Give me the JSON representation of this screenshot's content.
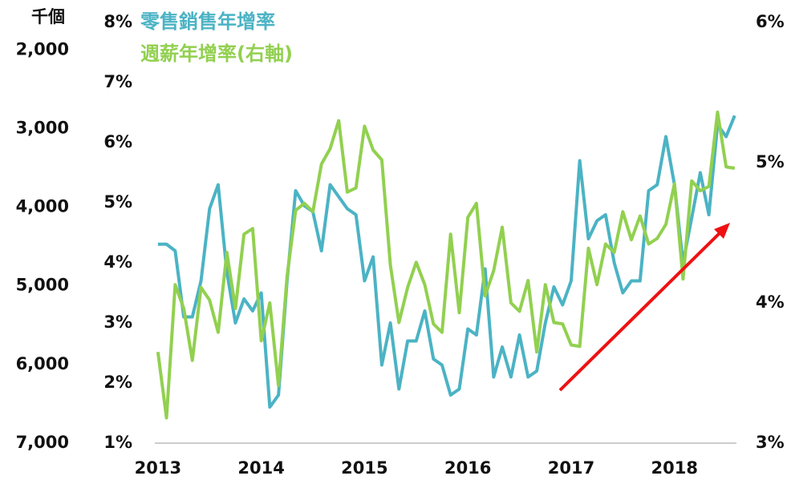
{
  "chart_data": {
    "type": "line",
    "y3_title": "千個",
    "x": [
      2013,
      2013.083,
      2013.167,
      2013.25,
      2013.333,
      2013.417,
      2013.5,
      2013.583,
      2013.667,
      2013.75,
      2013.833,
      2013.917,
      2014,
      2014.083,
      2014.167,
      2014.25,
      2014.333,
      2014.417,
      2014.5,
      2014.583,
      2014.667,
      2014.75,
      2014.833,
      2014.917,
      2015,
      2015.083,
      2015.167,
      2015.25,
      2015.333,
      2015.417,
      2015.5,
      2015.583,
      2015.667,
      2015.75,
      2015.833,
      2015.917,
      2016,
      2016.083,
      2016.167,
      2016.25,
      2016.333,
      2016.417,
      2016.5,
      2016.583,
      2016.667,
      2016.75,
      2016.833,
      2016.917,
      2017,
      2017.083,
      2017.167,
      2017.25,
      2017.333,
      2017.417,
      2017.5,
      2017.583,
      2017.667,
      2017.75,
      2017.833,
      2017.917,
      2018,
      2018.083,
      2018.167,
      2018.25,
      2018.333,
      2018.417,
      2018.5,
      2018.583
    ],
    "series": [
      {
        "name": "零售銷售年增率",
        "color": "#4bb3c4",
        "axis": "y",
        "values": [
          4.31,
          4.31,
          4.2,
          3.1,
          3.1,
          3.7,
          4.9,
          5.3,
          3.85,
          3.0,
          3.4,
          3.2,
          3.5,
          1.6,
          1.8,
          3.7,
          5.2,
          4.95,
          4.85,
          4.2,
          5.3,
          5.1,
          4.9,
          4.8,
          3.7,
          4.1,
          2.3,
          3.0,
          1.9,
          2.7,
          2.7,
          3.2,
          2.4,
          2.3,
          1.8,
          1.9,
          2.9,
          2.8,
          3.9,
          2.1,
          2.6,
          2.1,
          2.8,
          2.1,
          2.2,
          3.0,
          3.6,
          3.3,
          3.7,
          5.7,
          4.4,
          4.7,
          4.8,
          4.0,
          3.5,
          3.7,
          3.7,
          5.2,
          5.3,
          6.1,
          5.3,
          4.0,
          4.75,
          5.5,
          4.8,
          6.3,
          6.1,
          6.45
        ]
      },
      {
        "name": "週薪年增率(右軸)",
        "color": "#92d050",
        "axis": "y2",
        "values": [
          3.65,
          3.18,
          4.13,
          3.96,
          3.59,
          4.11,
          4.02,
          3.79,
          4.36,
          3.96,
          4.49,
          4.53,
          3.73,
          4.0,
          3.41,
          4.19,
          4.66,
          4.71,
          4.65,
          4.99,
          5.1,
          5.3,
          4.79,
          4.82,
          5.26,
          5.09,
          5.02,
          4.27,
          3.86,
          4.11,
          4.29,
          4.13,
          3.85,
          3.79,
          4.49,
          3.93,
          4.61,
          4.71,
          4.05,
          4.23,
          4.54,
          4.0,
          3.94,
          4.16,
          3.65,
          4.13,
          3.86,
          3.85,
          3.7,
          3.69,
          4.39,
          4.13,
          4.42,
          4.36,
          4.65,
          4.45,
          4.62,
          4.42,
          4.46,
          4.56,
          4.85,
          4.17,
          4.87,
          4.8,
          4.83,
          5.36,
          4.97,
          4.96
        ]
      }
    ],
    "xlim": [
      2012.97,
      2018.6
    ],
    "xticks": [
      2013,
      2014,
      2015,
      2016,
      2017,
      2018
    ],
    "ylim": [
      1,
      8
    ],
    "yticks": [
      {
        "value": 1,
        "label": "1%"
      },
      {
        "value": 2,
        "label": "2%"
      },
      {
        "value": 3,
        "label": "3%"
      },
      {
        "value": 4,
        "label": "4%"
      },
      {
        "value": 5,
        "label": "5%"
      },
      {
        "value": 6,
        "label": "6%"
      },
      {
        "value": 7,
        "label": "7%"
      },
      {
        "value": 8,
        "label": "8%"
      }
    ],
    "y2lim": [
      3,
      6
    ],
    "y2ticks": [
      {
        "value": 3,
        "label": "3%"
      },
      {
        "value": 4,
        "label": "4%"
      },
      {
        "value": 5,
        "label": "5%"
      },
      {
        "value": 6,
        "label": "6%"
      }
    ],
    "y3lim": [
      7000,
      1650
    ],
    "y3ticks": [
      {
        "value": 2000,
        "label": "2,000"
      },
      {
        "value": 3000,
        "label": "3,000"
      },
      {
        "value": 4000,
        "label": "4,000"
      },
      {
        "value": 5000,
        "label": "5,000"
      },
      {
        "value": 6000,
        "label": "6,000"
      },
      {
        "value": 7000,
        "label": "7,000"
      }
    ]
  }
}
